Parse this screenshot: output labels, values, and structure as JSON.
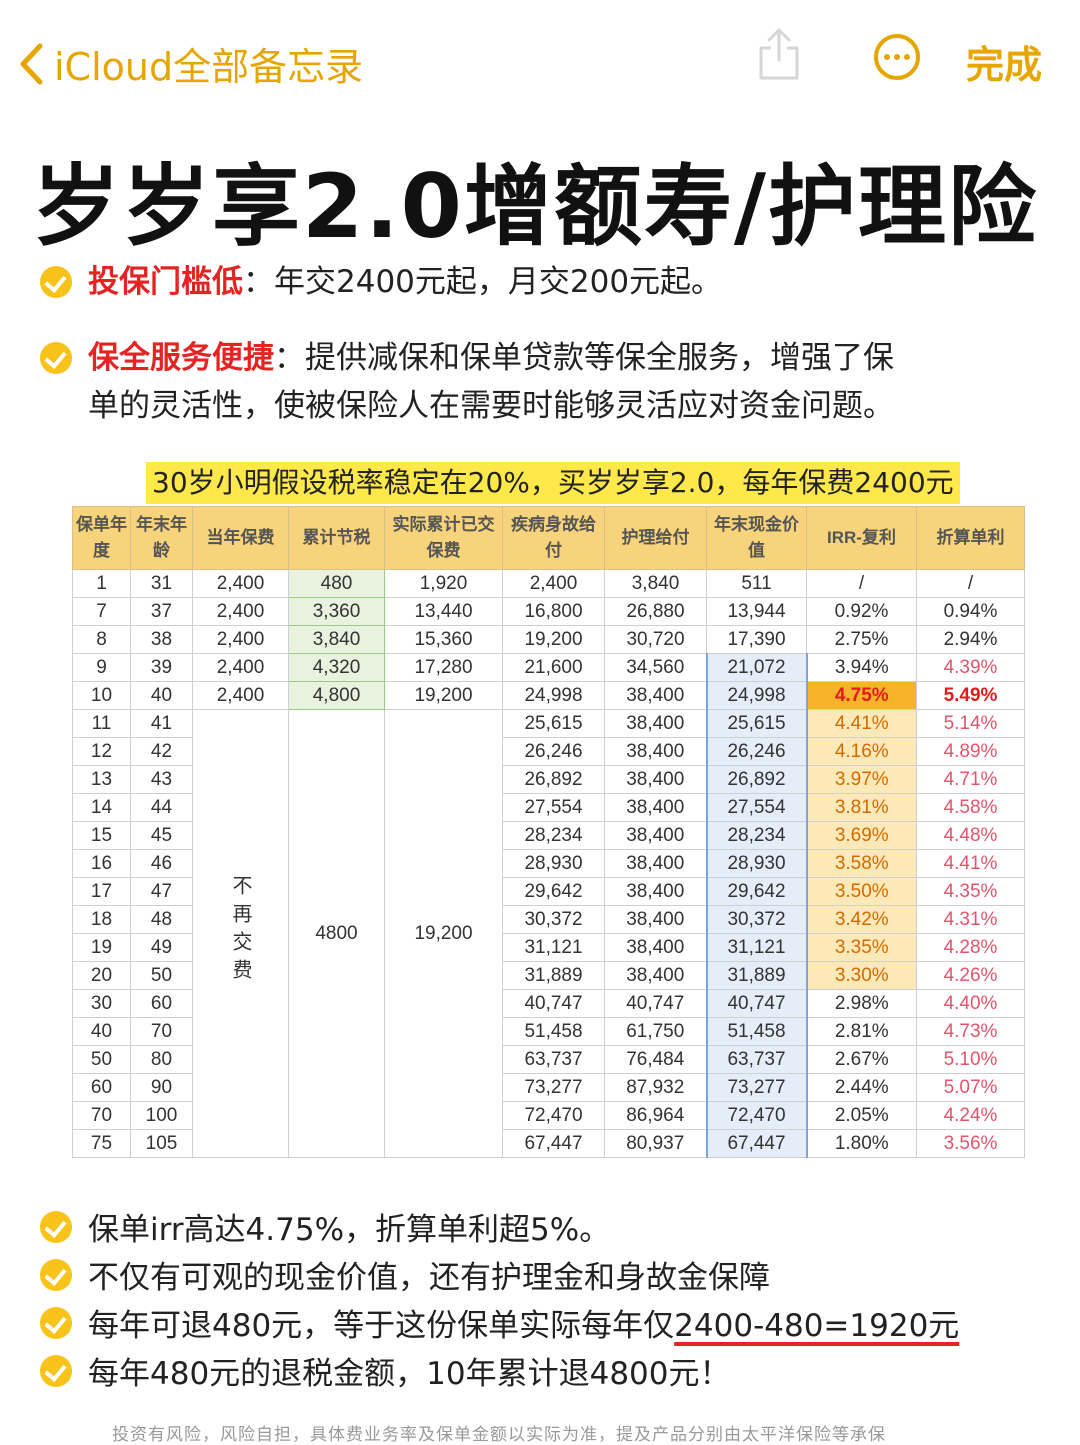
{
  "nav": {
    "back_label": "iCloud全部备忘录",
    "done_label": "完成"
  },
  "title": "岁岁享2.0增额寿/护理险",
  "bullets": [
    {
      "head": "投保门槛低",
      "sep": "：",
      "text": "年交2400元起，月交200元起。"
    },
    {
      "head": "保全服务便捷",
      "sep": "：",
      "text1": "提供减保和保单贷款等保全服务，增强了保",
      "text2": "单的灵活性，使被保险人在需要时能够灵活应对资金问题。"
    }
  ],
  "caption": "30岁小明假设税率稳定在20%，买岁岁享2.0，每年保费2400元",
  "table": {
    "headers": [
      "保单年度",
      "年末年龄",
      "当年保费",
      "累计节税",
      "实际累计已交保费",
      "疾病身故给付",
      "护理给付",
      "年末现金价值",
      "IRR-复利",
      "折算单利"
    ],
    "rows": [
      [
        "1",
        "31",
        "2,400",
        "480",
        "1,920",
        "2,400",
        "3,840",
        "511",
        "/",
        "/"
      ],
      [
        "7",
        "37",
        "2,400",
        "3,360",
        "13,440",
        "16,800",
        "26,880",
        "13,944",
        "0.92%",
        "0.94%"
      ],
      [
        "8",
        "38",
        "2,400",
        "3,840",
        "15,360",
        "19,200",
        "30,720",
        "17,390",
        "2.75%",
        "2.94%"
      ],
      [
        "9",
        "39",
        "2,400",
        "4,320",
        "17,280",
        "21,600",
        "34,560",
        "21,072",
        "3.94%",
        "4.39%"
      ],
      [
        "10",
        "40",
        "2,400",
        "4,800",
        "19,200",
        "24,998",
        "38,400",
        "24,998",
        "4.75%",
        "5.49%"
      ],
      [
        "11",
        "41",
        "",
        "",
        "",
        "25,615",
        "38,400",
        "25,615",
        "4.41%",
        "5.14%"
      ],
      [
        "12",
        "42",
        "",
        "",
        "",
        "26,246",
        "38,400",
        "26,246",
        "4.16%",
        "4.89%"
      ],
      [
        "13",
        "43",
        "",
        "",
        "",
        "26,892",
        "38,400",
        "26,892",
        "3.97%",
        "4.71%"
      ],
      [
        "14",
        "44",
        "",
        "",
        "",
        "27,554",
        "38,400",
        "27,554",
        "3.81%",
        "4.58%"
      ],
      [
        "15",
        "45",
        "",
        "",
        "",
        "28,234",
        "38,400",
        "28,234",
        "3.69%",
        "4.48%"
      ],
      [
        "16",
        "46",
        "",
        "",
        "",
        "28,930",
        "38,400",
        "28,930",
        "3.58%",
        "4.41%"
      ],
      [
        "17",
        "47",
        "",
        "",
        "",
        "29,642",
        "38,400",
        "29,642",
        "3.50%",
        "4.35%"
      ],
      [
        "18",
        "48",
        "",
        "",
        "",
        "30,372",
        "38,400",
        "30,372",
        "3.42%",
        "4.31%"
      ],
      [
        "19",
        "49",
        "",
        "",
        "",
        "31,121",
        "38,400",
        "31,121",
        "3.35%",
        "4.28%"
      ],
      [
        "20",
        "50",
        "",
        "",
        "",
        "31,889",
        "38,400",
        "31,889",
        "3.30%",
        "4.26%"
      ],
      [
        "30",
        "60",
        "",
        "",
        "",
        "40,747",
        "40,747",
        "40,747",
        "2.98%",
        "4.40%"
      ],
      [
        "40",
        "70",
        "",
        "",
        "",
        "51,458",
        "61,750",
        "51,458",
        "2.81%",
        "4.73%"
      ],
      [
        "50",
        "80",
        "",
        "",
        "",
        "63,737",
        "76,484",
        "63,737",
        "2.67%",
        "5.10%"
      ],
      [
        "60",
        "90",
        "",
        "",
        "",
        "73,277",
        "87,932",
        "73,277",
        "2.44%",
        "5.07%"
      ],
      [
        "70",
        "100",
        "",
        "",
        "",
        "72,470",
        "86,964",
        "72,470",
        "2.05%",
        "4.24%"
      ],
      [
        "75",
        "105",
        "",
        "",
        "",
        "67,447",
        "80,937",
        "67,447",
        "1.80%",
        "3.56%"
      ]
    ],
    "merged_premium": "不再交费",
    "merged_tax": "4800",
    "merged_paid": "19,200"
  },
  "points": [
    "保单irr高达4.75%，折算单利超5%。",
    "不仅有可观的现金价值，还有护理金和身故金保障",
    {
      "prefix": "每年可退480元，等于这份保单实际每年仅",
      "underlined": "2400-480=1920元"
    },
    "每年480元的退税金额，10年累计退4800元！"
  ],
  "footer": "投资有风险，风险自担，具体费业务率及保单金额以实际为准，提及产品分别由太平洋保险等承保",
  "colors": {
    "accent": "#e7a500",
    "check": "#f7c21a",
    "highlight": "#ffe94a",
    "red": "#e52323"
  }
}
